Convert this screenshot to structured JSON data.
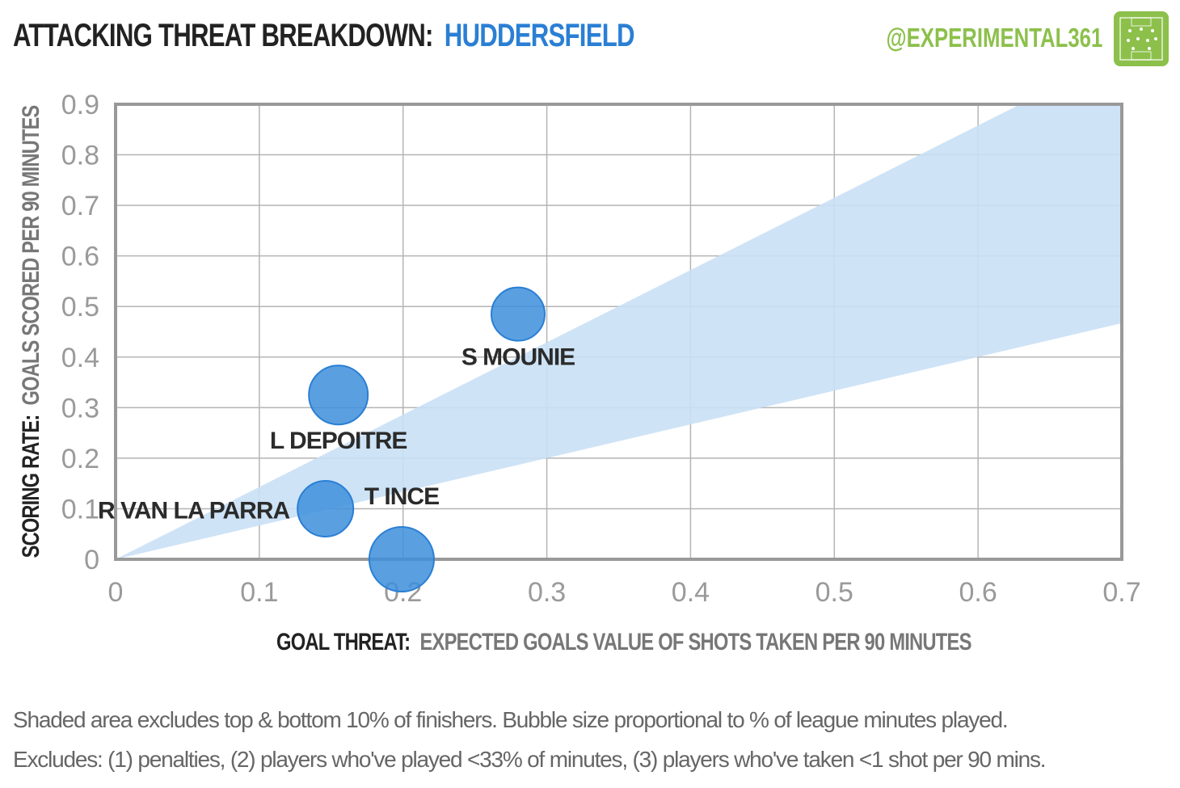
{
  "header": {
    "title_prefix": "ATTACKING THREAT BREAKDOWN:",
    "title_team": "HUDDERSFIELD",
    "handle": "@EXPERIMENTAL361",
    "logo_icon": "pitch-icon"
  },
  "colors": {
    "team_accent": "#2a7fd4",
    "brand_green": "#8cc04b",
    "bubble_fill": "#3d8fdc",
    "band_fill": "#c9e0f5",
    "grid": "#b5b5b5",
    "frame": "#999999"
  },
  "chart_data": {
    "type": "scatter",
    "title": "ATTACKING THREAT BREAKDOWN: HUDDERSFIELD",
    "xlabel_bold": "GOAL THREAT:",
    "xlabel": "EXPECTED GOALS VALUE OF SHOTS TAKEN PER 90 MINUTES",
    "ylabel_bold": "SCORING RATE:",
    "ylabel": "GOALS SCORED PER 90 MINUTES",
    "xlim": [
      0,
      0.7
    ],
    "ylim": [
      0,
      0.9
    ],
    "xticks": [
      "0",
      "0.1",
      "0.2",
      "0.3",
      "0.4",
      "0.5",
      "0.6",
      "0.7"
    ],
    "yticks": [
      "0",
      "0.1",
      "0.2",
      "0.3",
      "0.4",
      "0.5",
      "0.6",
      "0.7",
      "0.8",
      "0.9"
    ],
    "grid": true,
    "band": {
      "lower_slope": 0.667,
      "upper_slope": 1.43
    },
    "points": [
      {
        "label": "S MOUNIE",
        "x": 0.28,
        "y": 0.485,
        "size": 0.26,
        "label_pos": "below"
      },
      {
        "label": "L DEPOITRE",
        "x": 0.155,
        "y": 0.325,
        "size": 0.33,
        "label_pos": "below"
      },
      {
        "label": "R VAN LA PARRA",
        "x": 0.146,
        "y": 0.1,
        "size": 0.29,
        "label_pos": "left"
      },
      {
        "label": "T INCE",
        "x": 0.199,
        "y": 0.0,
        "size": 0.4,
        "label_pos": "above"
      }
    ]
  },
  "notes": [
    "Shaded area excludes top & bottom  10% of finishers. Bubble size proportional to  % of league minutes played.",
    "Excludes: (1) penalties, (2) players who've played <33% of minutes, (3) players who've taken <1 shot per 90 mins."
  ]
}
